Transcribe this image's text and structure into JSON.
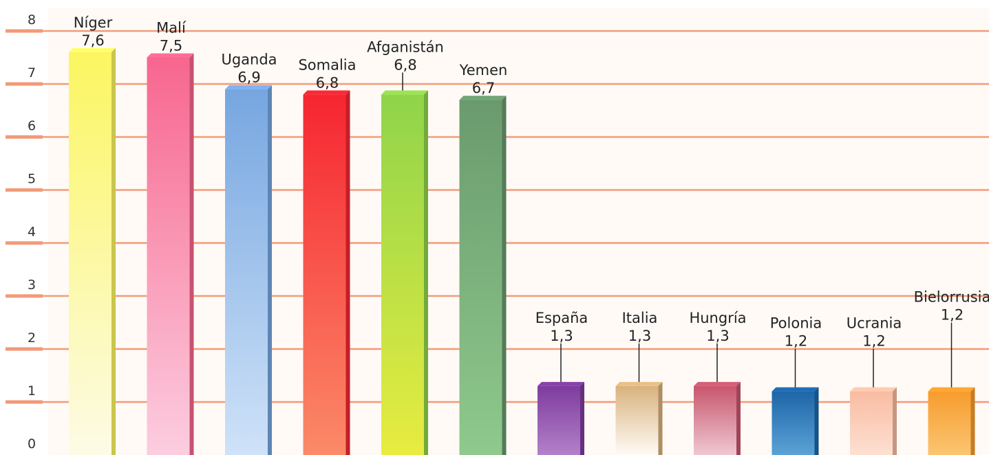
{
  "chart_data": {
    "type": "bar",
    "title": "",
    "xlabel": "",
    "ylabel": "",
    "ylim": [
      0,
      8
    ],
    "yticks": [
      0,
      1,
      2,
      3,
      4,
      5,
      6,
      7,
      8
    ],
    "grid": true,
    "legend": "none",
    "gridline_color": "#f29a78",
    "categories": [
      "Níger",
      "Malí",
      "Uganda",
      "Somalia",
      "Afganistán",
      "Yemen",
      "España",
      "Italia",
      "Hungría",
      "Polonia",
      "Ucrania",
      "Bielorrusia"
    ],
    "values": [
      7.6,
      7.5,
      6.9,
      6.8,
      6.8,
      6.7,
      1.3,
      1.3,
      1.3,
      1.2,
      1.2,
      1.2
    ],
    "value_labels": [
      "7,6",
      "7,5",
      "6,9",
      "6,8",
      "6,8",
      "6,7",
      "1,3",
      "1,3",
      "1,3",
      "1,2",
      "1,2",
      "1,2"
    ],
    "colors": [
      [
        "#fbf660",
        "#fdfbe6"
      ],
      [
        "#f7668e",
        "#fccde0"
      ],
      [
        "#76a6e0",
        "#cfe2f8"
      ],
      [
        "#f62531",
        "#fb8a68"
      ],
      [
        "#8fd44a",
        "#e8ec40"
      ],
      [
        "#6a9a6e",
        "#8fc98c"
      ],
      [
        "#7e3c9e",
        "#b381c9"
      ],
      [
        "#d9b27d",
        "#fefbf5"
      ],
      [
        "#c8566e",
        "#efc8d1"
      ],
      [
        "#1d66a8",
        "#5ba2d6"
      ],
      [
        "#f9bca3",
        "#fde0d2"
      ],
      [
        "#f79c2d",
        "#fbc572"
      ]
    ]
  }
}
